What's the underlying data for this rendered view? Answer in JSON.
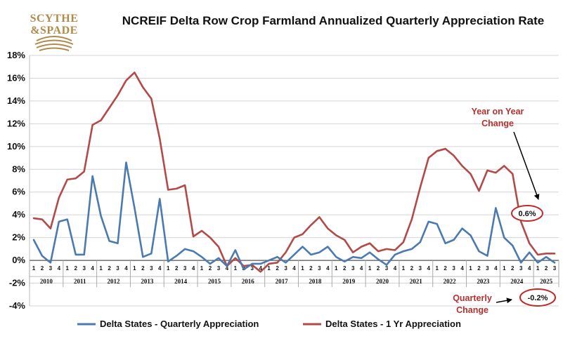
{
  "logo": {
    "line1": "SCYTHE",
    "line2": "&SPADE"
  },
  "colors": {
    "quarterly": "#4a7ab0",
    "yearly": "#b24a48",
    "accent": "#c0292a",
    "logo": "#b08a4a"
  },
  "annotations": {
    "yoy": [
      "Year on Year",
      "Change"
    ],
    "yoy_value": "0.6%",
    "quarterly": [
      "Quarterly",
      "Change"
    ],
    "quarterly_value": "-0.2%"
  },
  "chart_data": {
    "type": "line",
    "title": "NCREIF Delta Row Crop Farmland Annualized Quarterly Appreciation Rate",
    "xlabel": "",
    "ylabel": "",
    "ylim": [
      -4,
      18
    ],
    "yticks": [
      "-4%",
      "-2%",
      "0%",
      "2%",
      "4%",
      "6%",
      "8%",
      "10%",
      "12%",
      "14%",
      "16%",
      "18%"
    ],
    "years": [
      "2010",
      "2011",
      "2012",
      "2013",
      "2014",
      "2015",
      "2016",
      "2017",
      "2018",
      "2019",
      "2020",
      "2021",
      "2022",
      "2023",
      "2024",
      "2025"
    ],
    "quarters": [
      "1",
      "2",
      "3",
      "4"
    ],
    "last_year_quarters": 3,
    "legend_position": "bottom",
    "series": [
      {
        "name": "Delta States - Quarterly Appreciation",
        "values": [
          1.8,
          0.4,
          -0.2,
          3.4,
          3.6,
          0.5,
          0.5,
          7.4,
          3.9,
          1.7,
          1.5,
          8.6,
          4.6,
          0.3,
          0.6,
          5.4,
          -0.1,
          0.4,
          1.0,
          0.8,
          0.3,
          -0.3,
          0.2,
          -0.5,
          0.9,
          -0.8,
          -0.3,
          -0.3,
          0.0,
          0.3,
          -0.2,
          0.5,
          1.2,
          0.5,
          0.7,
          1.2,
          0.3,
          -0.1,
          0.3,
          0.2,
          0.7,
          0.1,
          -0.4,
          0.5,
          0.8,
          1.0,
          1.6,
          3.4,
          3.2,
          1.5,
          1.8,
          2.8,
          2.2,
          0.8,
          0.4,
          4.6,
          2.0,
          1.3,
          -0.2,
          0.7,
          -0.2,
          0.3,
          -0.2
        ]
      },
      {
        "name": "Delta States -  1 Yr Appreciation",
        "values": [
          3.7,
          3.6,
          2.8,
          5.5,
          7.1,
          7.2,
          7.8,
          11.9,
          12.3,
          13.4,
          14.5,
          15.8,
          16.5,
          15.2,
          14.2,
          10.7,
          6.2,
          6.3,
          6.6,
          2.1,
          2.6,
          2.0,
          1.2,
          -0.5,
          0.2,
          -0.5,
          -0.4,
          -1.0,
          -0.3,
          -0.2,
          0.7,
          2.0,
          2.3,
          3.1,
          3.8,
          2.8,
          2.2,
          1.8,
          0.7,
          1.2,
          1.5,
          0.8,
          1.0,
          0.9,
          1.6,
          3.6,
          6.4,
          9.0,
          9.6,
          9.8,
          9.2,
          8.3,
          7.6,
          6.1,
          7.9,
          7.7,
          8.3,
          7.6,
          3.4,
          1.5,
          0.5,
          0.6,
          0.6
        ]
      }
    ]
  }
}
